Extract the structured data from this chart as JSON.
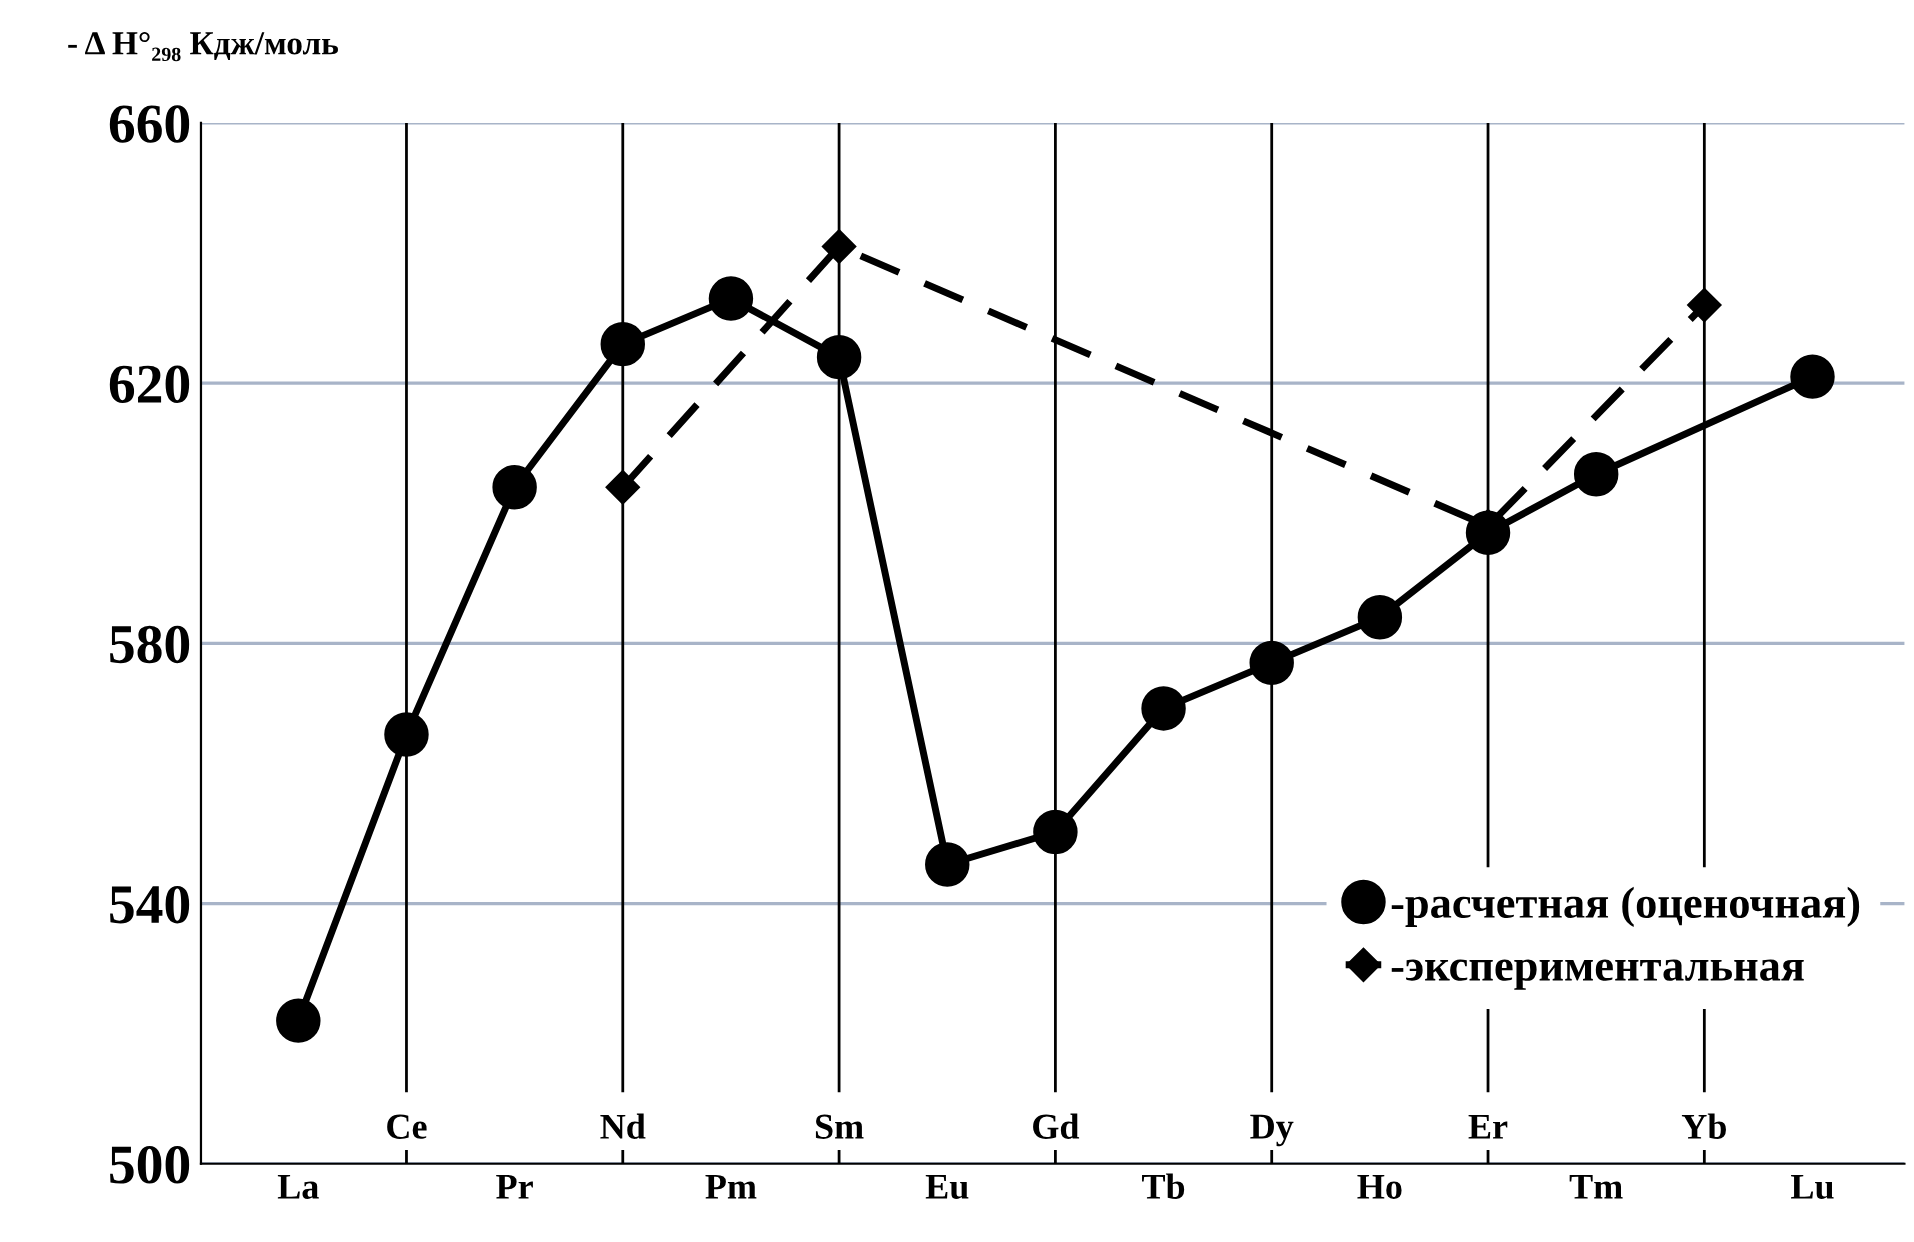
{
  "chart_data": {
    "type": "line",
    "ylabel": "- Δ H°₂₉₈ Кдж/моль",
    "categories": [
      "La",
      "Ce",
      "Pr",
      "Nd",
      "Pm",
      "Sm",
      "Eu",
      "Gd",
      "Tb",
      "Dy",
      "Ho",
      "Er",
      "Tm",
      "Yb",
      "Lu"
    ],
    "series": [
      {
        "name": "-расчетная (оценочная)",
        "color": "#000000",
        "marker": "circle",
        "line_style": "solid",
        "values": [
          522,
          566,
          604,
          626,
          633,
          624,
          546,
          551,
          570,
          577,
          584,
          597,
          606,
          null,
          621
        ]
      },
      {
        "name": "-экспериментальная",
        "color": "#000000",
        "marker": "diamond",
        "line_style": "dashed",
        "values": [
          null,
          null,
          null,
          604,
          null,
          641,
          null,
          null,
          null,
          null,
          null,
          598,
          null,
          632,
          null
        ]
      }
    ],
    "ylim": [
      500,
      660
    ],
    "yticks": [
      500,
      540,
      580,
      620,
      660
    ],
    "grid": true,
    "legend": "bottom right"
  }
}
